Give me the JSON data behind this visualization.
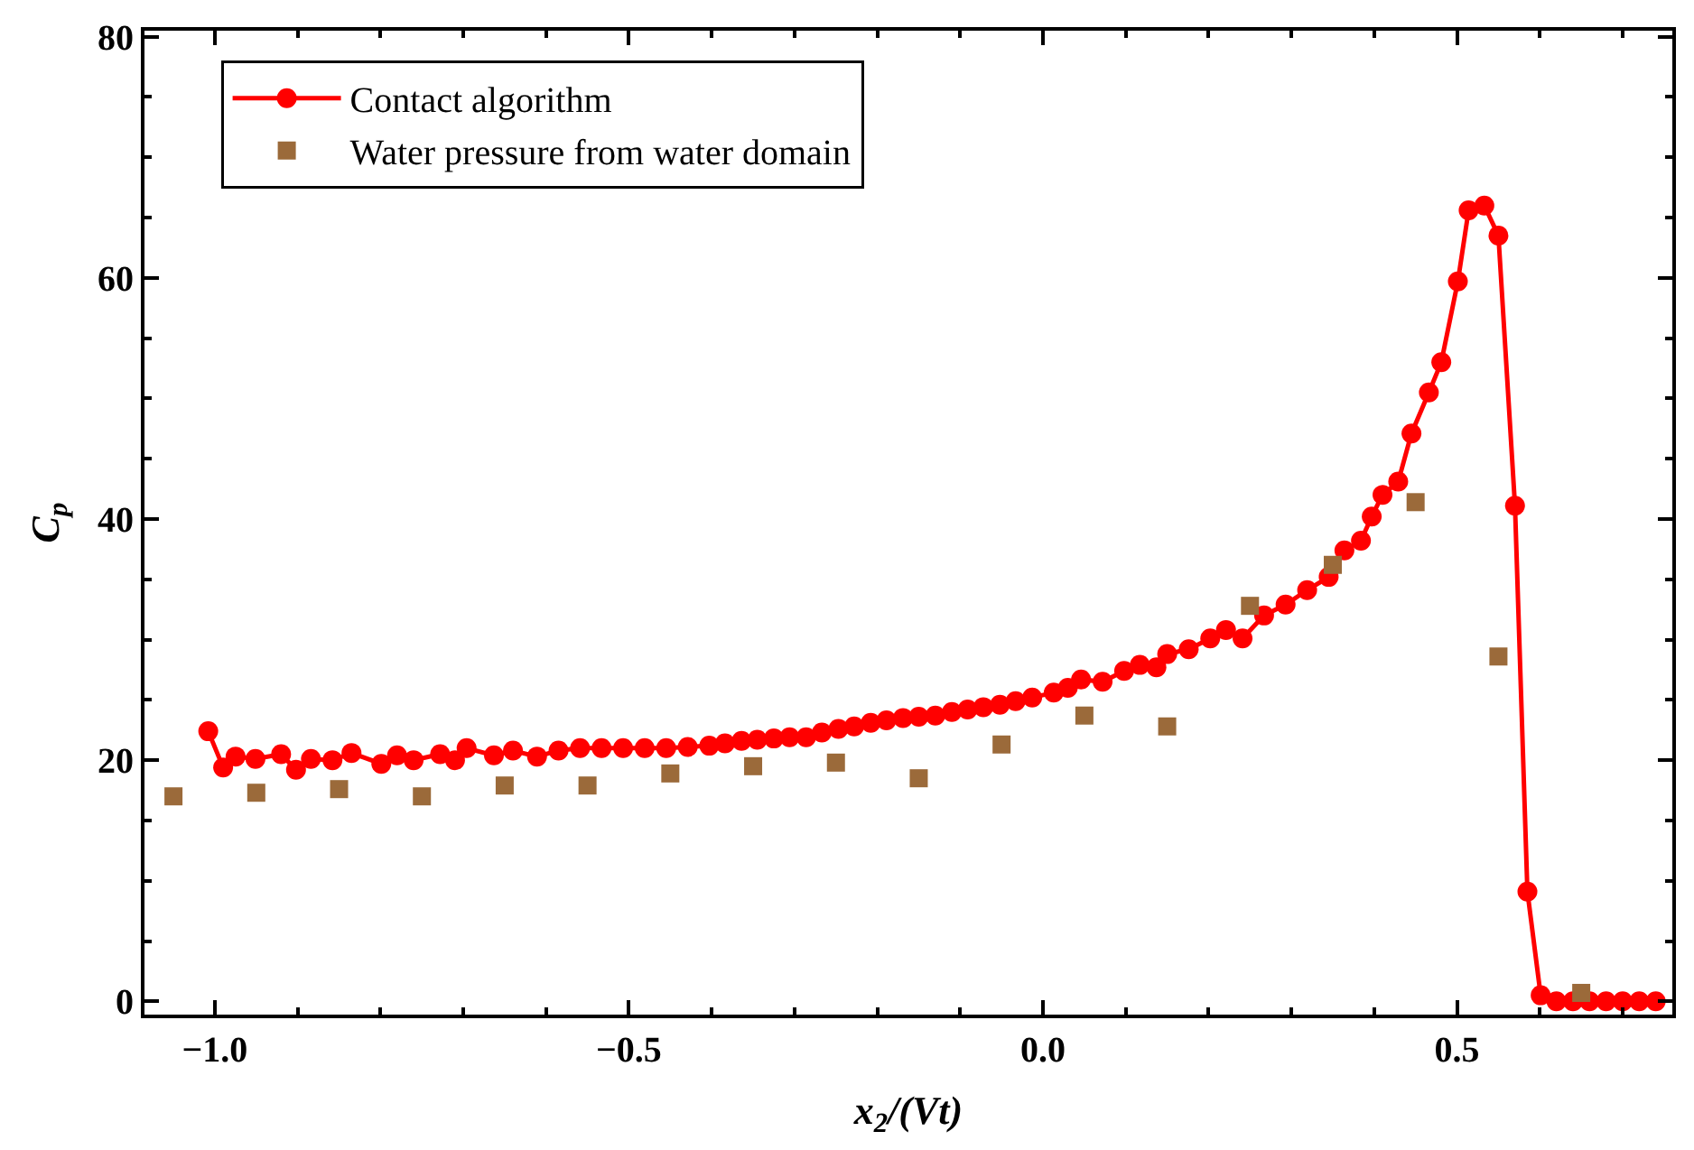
{
  "chart_data": {
    "type": "line",
    "xlabel": "x$_{2}$/(Vt)",
    "ylabel": "C$_{p}$",
    "xlim": [
      -1.085,
      0.76
    ],
    "ylim": [
      -1.1,
      80.5
    ],
    "xticks": [
      {
        "value": -1.0,
        "label": "−1.0"
      },
      {
        "value": -0.5,
        "label": "−0.5"
      },
      {
        "value": 0.0,
        "label": "0.0"
      },
      {
        "value": 0.5,
        "label": "0.5"
      }
    ],
    "yticks": [
      0,
      20,
      40,
      60,
      80
    ],
    "grid": false,
    "legend": "top left",
    "series": [
      {
        "name": "Contact algorithm",
        "marker": "circle",
        "line_style": "solid",
        "color": "#ff0000",
        "x": [
          -1.008,
          -0.99,
          -0.975,
          -0.951,
          -0.92,
          -0.902,
          -0.884,
          -0.858,
          -0.835,
          -0.799,
          -0.78,
          -0.76,
          -0.728,
          -0.71,
          -0.696,
          -0.663,
          -0.64,
          -0.611,
          -0.585,
          -0.559,
          -0.533,
          -0.507,
          -0.481,
          -0.455,
          -0.429,
          -0.403,
          -0.384,
          -0.364,
          -0.345,
          -0.325,
          -0.306,
          -0.286,
          -0.267,
          -0.247,
          -0.228,
          -0.208,
          -0.189,
          -0.169,
          -0.15,
          -0.13,
          -0.11,
          -0.091,
          -0.072,
          -0.052,
          -0.033,
          -0.013,
          0.013,
          0.03,
          0.046,
          0.072,
          0.098,
          0.117,
          0.137,
          0.15,
          0.176,
          0.202,
          0.221,
          0.241,
          0.267,
          0.293,
          0.319,
          0.345,
          0.364,
          0.384,
          0.397,
          0.41,
          0.429,
          0.445,
          0.466,
          0.481,
          0.501,
          0.514,
          0.533,
          0.55,
          0.57,
          0.585,
          0.601,
          0.62,
          0.64,
          0.66,
          0.68,
          0.7,
          0.72,
          0.74
        ],
        "values": [
          22.4,
          19.4,
          20.3,
          20.1,
          20.5,
          19.2,
          20.1,
          20.0,
          20.6,
          19.7,
          20.4,
          20.0,
          20.5,
          20.0,
          21.0,
          20.4,
          20.8,
          20.3,
          20.8,
          21.0,
          21.0,
          21.0,
          21.0,
          21.0,
          21.1,
          21.2,
          21.4,
          21.6,
          21.7,
          21.8,
          21.9,
          21.9,
          22.3,
          22.6,
          22.8,
          23.1,
          23.3,
          23.5,
          23.6,
          23.7,
          24.0,
          24.2,
          24.4,
          24.6,
          24.9,
          25.2,
          25.6,
          26.0,
          26.7,
          26.5,
          27.4,
          27.9,
          27.7,
          28.8,
          29.2,
          30.1,
          30.8,
          30.1,
          32.0,
          32.9,
          34.1,
          35.2,
          37.4,
          38.2,
          40.2,
          42.0,
          43.1,
          47.1,
          50.5,
          53.0,
          59.7,
          65.6,
          66.0,
          63.5,
          41.1,
          9.1,
          0.5,
          0,
          0,
          0,
          0,
          0,
          0,
          0
        ]
      },
      {
        "name": "Water pressure from water domain",
        "type": "scatter",
        "marker": "square",
        "color": "#9b6a3a",
        "x": [
          -1.05,
          -0.95,
          -0.85,
          -0.75,
          -0.65,
          -0.55,
          -0.45,
          -0.35,
          -0.25,
          -0.15,
          -0.05,
          0.05,
          0.15,
          0.25,
          0.35,
          0.45,
          0.55,
          0.65
        ],
        "values": [
          17.0,
          17.3,
          17.6,
          17.0,
          17.9,
          17.9,
          18.9,
          19.5,
          19.8,
          18.5,
          21.3,
          23.7,
          22.8,
          32.8,
          36.2,
          41.4,
          28.6,
          0.7
        ]
      }
    ]
  }
}
